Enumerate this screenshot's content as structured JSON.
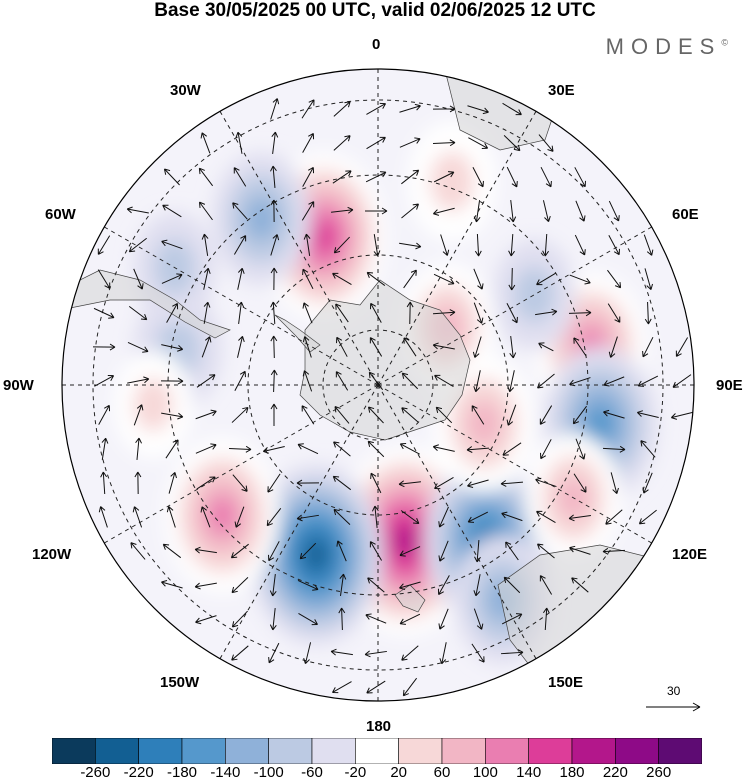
{
  "title": "Base 30/05/2025 00 UTC, valid 02/06/2025 12 UTC",
  "brand": "MODES",
  "brand_mark": "©",
  "lon_labels": {
    "l0": "0",
    "l30e": "30E",
    "l60e": "60E",
    "l90e": "90E",
    "l120e": "120E",
    "l150e": "150E",
    "l180": "180",
    "l150w": "150W",
    "l120w": "120W",
    "l90w": "90W",
    "l60w": "60W",
    "l30w": "30W"
  },
  "reference_vector": {
    "label": "30"
  },
  "colorbar": {
    "colors": [
      "#0b3a5c",
      "#125f93",
      "#2e7fba",
      "#5598cc",
      "#8fb1d9",
      "#bccae3",
      "#e0dff0",
      "#ffffff",
      "#f7d8d8",
      "#f2b6c5",
      "#ea7eb1",
      "#dd3d99",
      "#b3178b",
      "#8e0a87",
      "#5e0b73"
    ],
    "labels": [
      "-260",
      "-220",
      "-180",
      "-140",
      "-100",
      "-60",
      "-20",
      "20",
      "60",
      "100",
      "140",
      "180",
      "220",
      "260"
    ]
  },
  "map_features": {
    "projection": "south-polar-stereographic",
    "anomalies": [
      {
        "lon": 170,
        "lat": -55,
        "value": 250
      },
      {
        "lon": -160,
        "lat": -50,
        "value": -230
      },
      {
        "lon": -130,
        "lat": -45,
        "value": 170
      },
      {
        "lon": 145,
        "lat": -48,
        "value": -200
      },
      {
        "lon": 80,
        "lat": -42,
        "value": 160
      },
      {
        "lon": 100,
        "lat": -40,
        "value": -170
      },
      {
        "lon": 120,
        "lat": -40,
        "value": 110
      },
      {
        "lon": 150,
        "lat": -35,
        "value": -110
      },
      {
        "lon": 20,
        "lat": -42,
        "value": 90
      },
      {
        "lon": -20,
        "lat": -55,
        "value": 200
      },
      {
        "lon": -35,
        "lat": -45,
        "value": -120
      },
      {
        "lon": -80,
        "lat": -45,
        "value": -90
      },
      {
        "lon": -95,
        "lat": -40,
        "value": 60
      },
      {
        "lon": 50,
        "lat": -70,
        "value": 110
      },
      {
        "lon": 110,
        "lat": -65,
        "value": 130
      },
      {
        "lon": 60,
        "lat": -50,
        "value": -70
      },
      {
        "lon": -60,
        "lat": -38,
        "value": -70
      }
    ]
  }
}
